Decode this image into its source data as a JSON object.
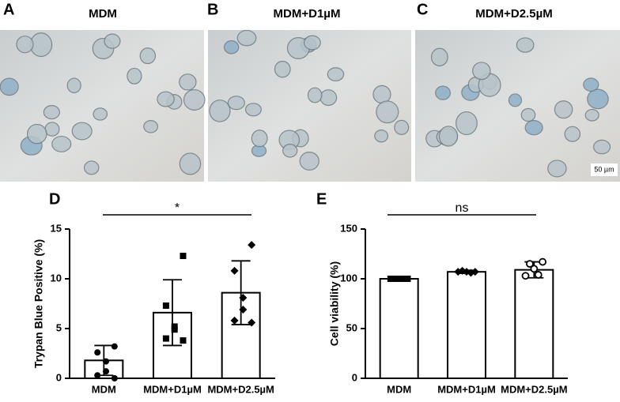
{
  "panels": [
    {
      "label": "A",
      "title": "MDM"
    },
    {
      "label": "B",
      "title": "MDM+D1µM"
    },
    {
      "label": "C",
      "title": "MDM+D2.5µM"
    }
  ],
  "scale_bar": "50 µm",
  "chart_data": [
    {
      "type": "bar",
      "label": "D",
      "ylabel": "Trypan Blue Positive (%)",
      "categories": [
        "MDM",
        "MDM+D1µM",
        "MDM+D2.5µM"
      ],
      "series": [
        {
          "color": "#ffffff",
          "values": [
            1.8,
            6.6,
            8.6
          ],
          "errors": [
            1.5,
            3.3,
            3.2
          ],
          "points": [
            [
              3.2,
              2.6,
              1.7,
              0.7,
              0.3,
              0.0
            ],
            [
              12.3,
              7.3,
              5.2,
              4.9,
              4.0,
              3.8
            ],
            [
              13.4,
              10.8,
              8.1,
              6.9,
              5.8,
              5.6
            ]
          ]
        }
      ],
      "markers": [
        "circle",
        "square",
        "diamond"
      ],
      "ylim": [
        0,
        15
      ],
      "yticks": [
        0,
        5,
        10,
        15
      ],
      "significance": {
        "label": "*"
      }
    },
    {
      "type": "bar",
      "label": "E",
      "ylabel": "Cell viability (%)",
      "categories": [
        "MDM",
        "MDM+D1µM",
        "MDM+D2.5µM"
      ],
      "series": [
        {
          "color": "#ffffff",
          "values": [
            100,
            107,
            109
          ],
          "errors": [
            0.5,
            1.5,
            8
          ],
          "points": [
            [
              100,
              100,
              100,
              100,
              100
            ],
            [
              107,
              108,
              107,
              106,
              107
            ],
            [
              117,
              115,
              110,
              104,
              103
            ]
          ]
        }
      ],
      "markers": [
        "square",
        "diamond",
        "circle-open"
      ],
      "ylim": [
        0,
        150
      ],
      "yticks": [
        0,
        50,
        100,
        150
      ],
      "significance": {
        "label": "ns"
      }
    }
  ]
}
